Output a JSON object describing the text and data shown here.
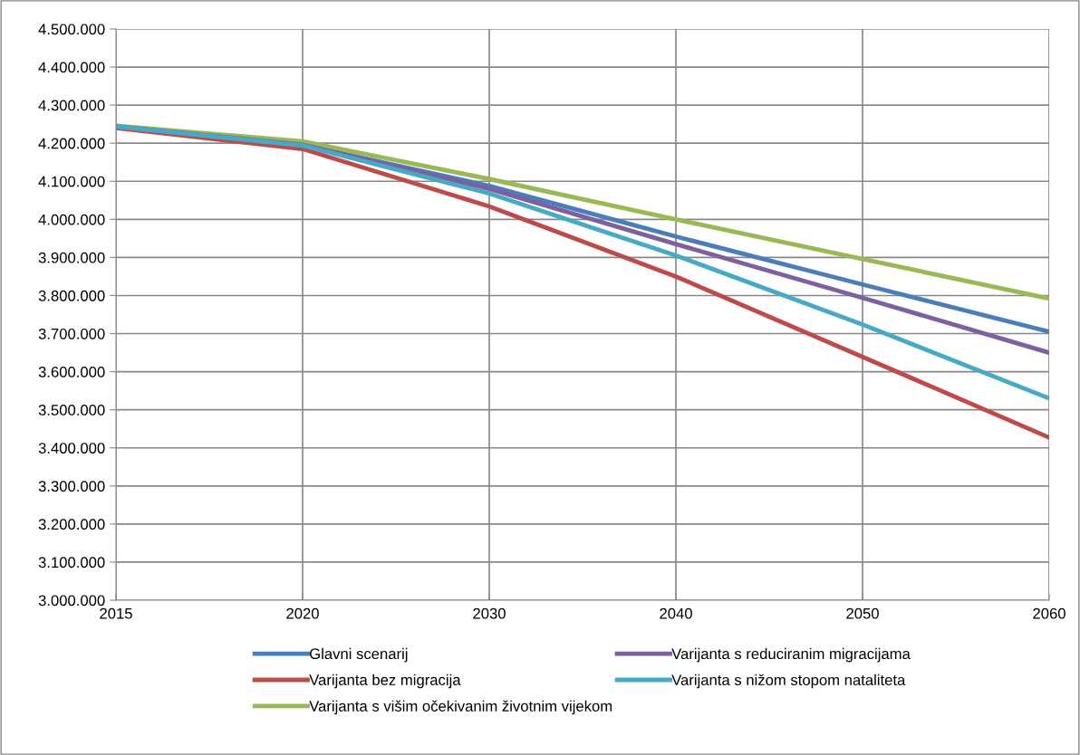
{
  "chart_data": {
    "type": "line",
    "categories": [
      "2015",
      "2020",
      "2030",
      "2040",
      "2050",
      "2060"
    ],
    "series": [
      {
        "name": "Glavni scenarij",
        "color": "#4a7ebb",
        "values": [
          4244000,
          4196000,
          4088000,
          3955000,
          3829000,
          3705000
        ]
      },
      {
        "name": "Varijanta bez migracija",
        "color": "#be4b48",
        "values": [
          4240000,
          4185000,
          4034000,
          3850000,
          3639000,
          3427000
        ]
      },
      {
        "name": "Varijanta s višim očekivanim životnim vijekom",
        "color": "#98b954",
        "values": [
          4246000,
          4205000,
          4106000,
          4000000,
          3896000,
          3792000
        ]
      },
      {
        "name": "Varijanta s reduciranim migracijama",
        "color": "#7d60a0",
        "values": [
          4244000,
          4196000,
          4080000,
          3935000,
          3794000,
          3650000
        ]
      },
      {
        "name": "Varijanta s nižom stopom nataliteta",
        "color": "#46aac5",
        "values": [
          4244000,
          4194000,
          4068000,
          3905000,
          3724000,
          3530000
        ]
      }
    ],
    "ylim": [
      3000000,
      4500000
    ],
    "yticks": [
      {
        "value": 3000000,
        "label": "3.000.000"
      },
      {
        "value": 3100000,
        "label": "3.100.000"
      },
      {
        "value": 3200000,
        "label": "3.200.000"
      },
      {
        "value": 3300000,
        "label": "3.300.000"
      },
      {
        "value": 3400000,
        "label": "3.400.000"
      },
      {
        "value": 3500000,
        "label": "3.500.000"
      },
      {
        "value": 3600000,
        "label": "3.600.000"
      },
      {
        "value": 3700000,
        "label": "3.700.000"
      },
      {
        "value": 3800000,
        "label": "3.800.000"
      },
      {
        "value": 3900000,
        "label": "3.900.000"
      },
      {
        "value": 4000000,
        "label": "4.000.000"
      },
      {
        "value": 4100000,
        "label": "4.100.000"
      },
      {
        "value": 4200000,
        "label": "4.200.000"
      },
      {
        "value": 4300000,
        "label": "4.300.000"
      },
      {
        "value": 4400000,
        "label": "4.400.000"
      },
      {
        "value": 4500000,
        "label": "4.500.000"
      }
    ],
    "grid": true,
    "legend": "bottom",
    "marker": "none",
    "line_style": "solid"
  }
}
